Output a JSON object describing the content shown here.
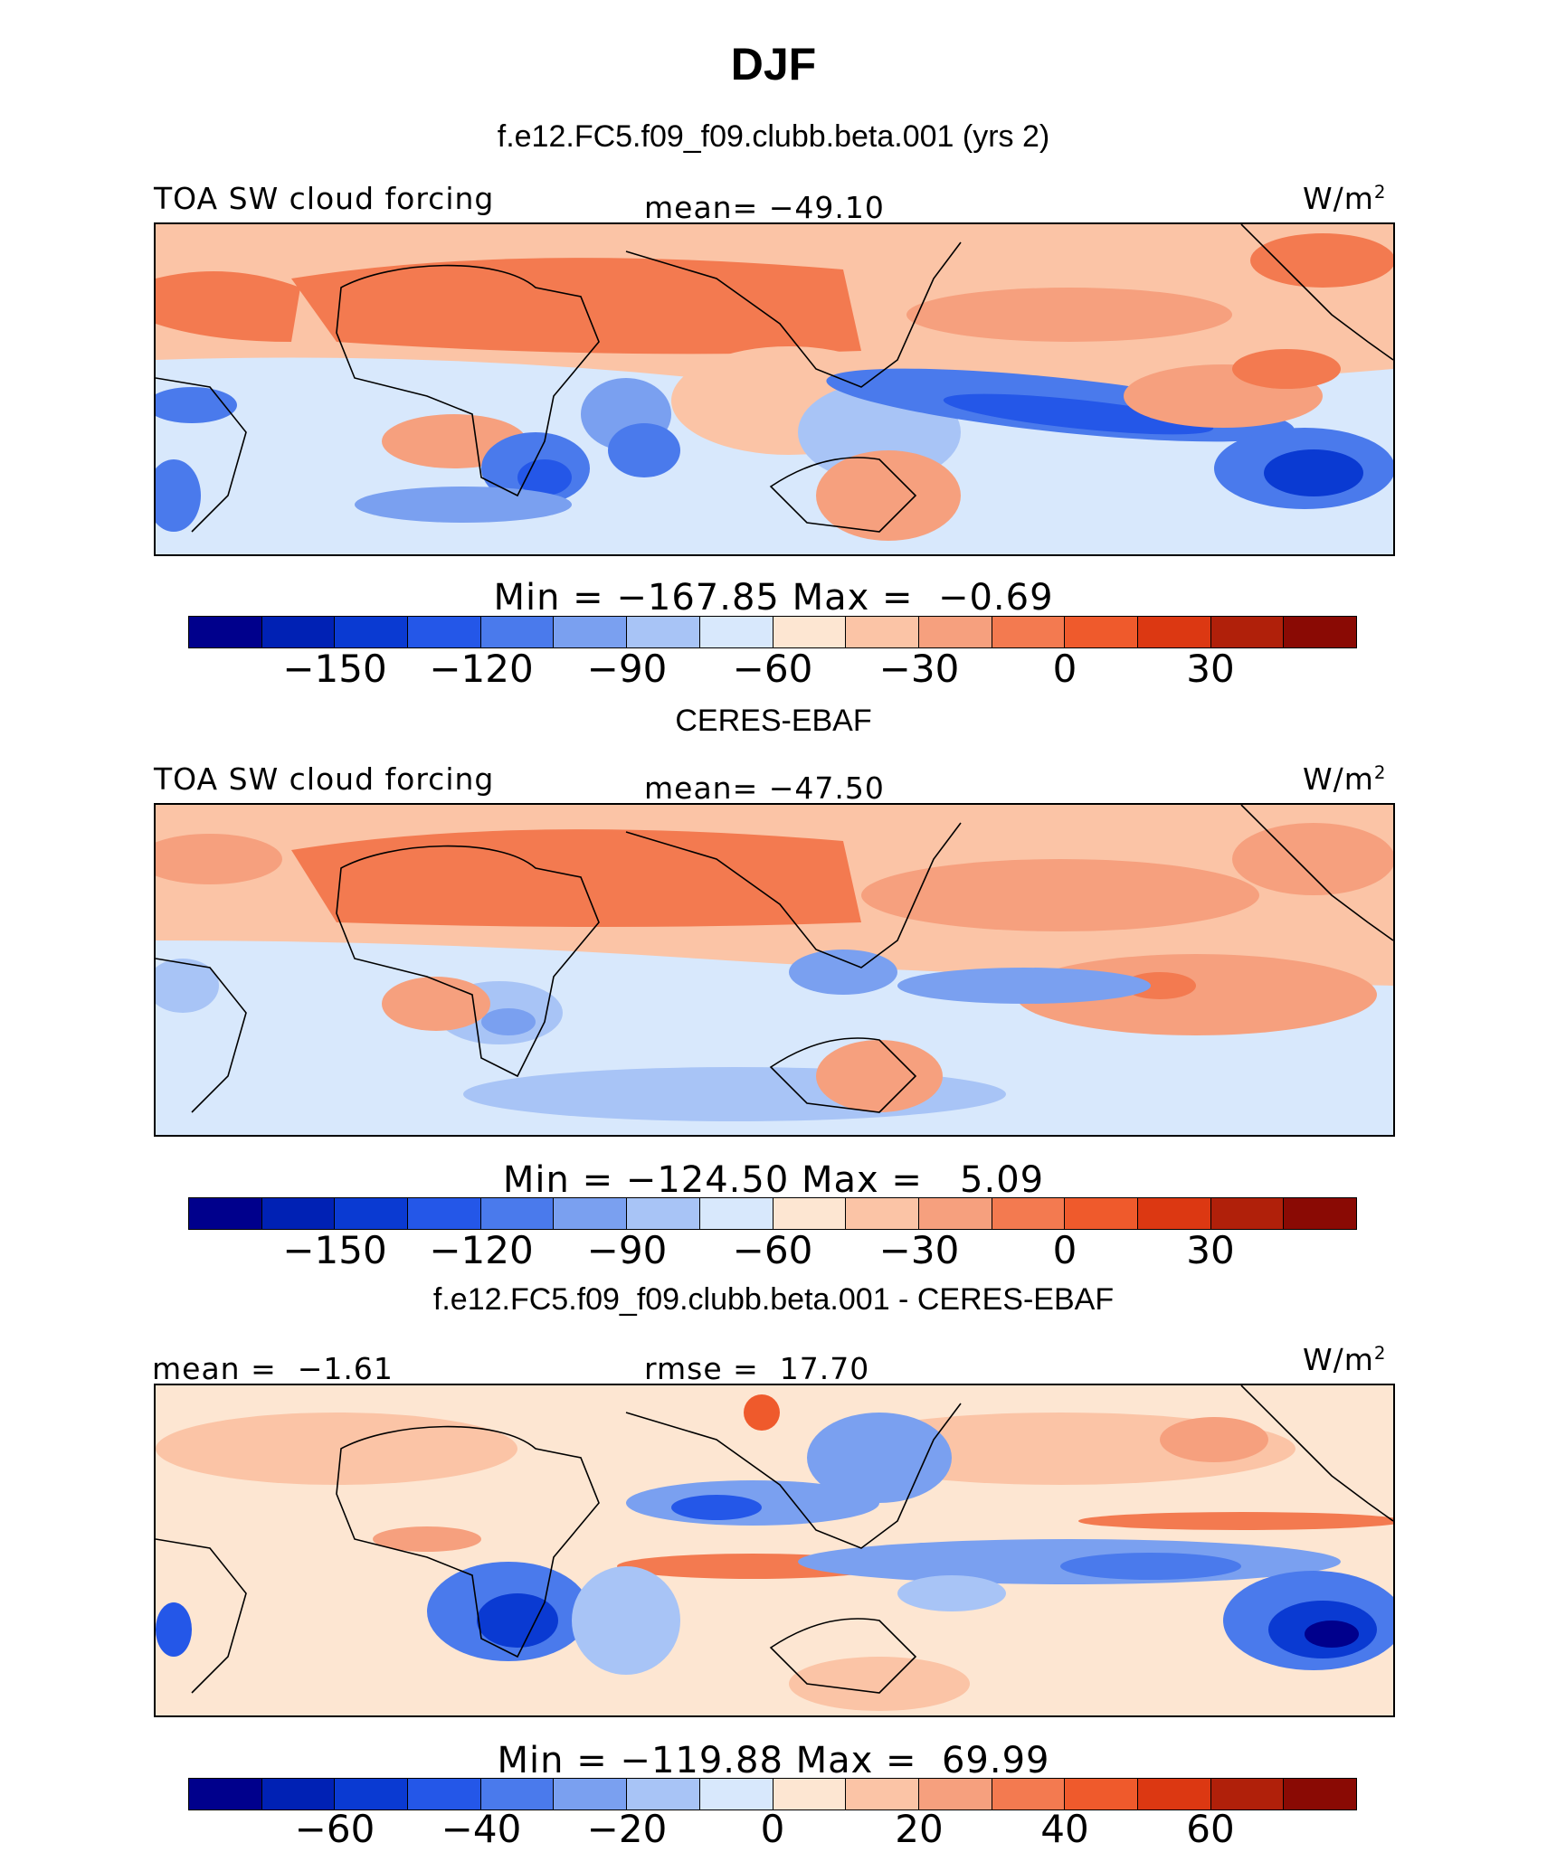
{
  "title": "DJF",
  "panels": [
    {
      "id": "model",
      "header": "f.e12.FC5.f09_f09.clubb.beta.001 (yrs 2)",
      "left_label": "TOA SW cloud forcing",
      "center_label": "mean= −49.10",
      "units_base": "W/m",
      "units_exp": "2",
      "stats": "Min = −167.85 Max =  −0.69",
      "colorbar_ticks": [
        "−150",
        "−120",
        "−90",
        "−60",
        "−30",
        "0",
        "30"
      ]
    },
    {
      "id": "obs",
      "header": "CERES-EBAF",
      "left_label": "TOA SW cloud forcing",
      "center_label": "mean= −47.50",
      "units_base": "W/m",
      "units_exp": "2",
      "stats": "Min = −124.50 Max =   5.09",
      "colorbar_ticks": [
        "−150",
        "−120",
        "−90",
        "−60",
        "−30",
        "0",
        "30"
      ]
    },
    {
      "id": "diff",
      "header": "f.e12.FC5.f09_f09.clubb.beta.001 - CERES-EBAF",
      "left_label": "mean =  −1.61",
      "center_label": "rmse =  17.70",
      "units_base": "W/m",
      "units_exp": "2",
      "stats": "Min = −119.88 Max =  69.99",
      "colorbar_ticks": [
        "−60",
        "−40",
        "−20",
        "0",
        "20",
        "40",
        "60"
      ]
    }
  ],
  "colorbar_colors": [
    "#00008c",
    "#0021b4",
    "#0a3ad2",
    "#2457e8",
    "#4a7aec",
    "#7aa0f0",
    "#a8c4f6",
    "#d8e8fc",
    "#fde6d2",
    "#fbc4a6",
    "#f6a07e",
    "#f37a50",
    "#ef5a2c",
    "#dc3812",
    "#b0200a",
    "#8a0a04"
  ]
}
